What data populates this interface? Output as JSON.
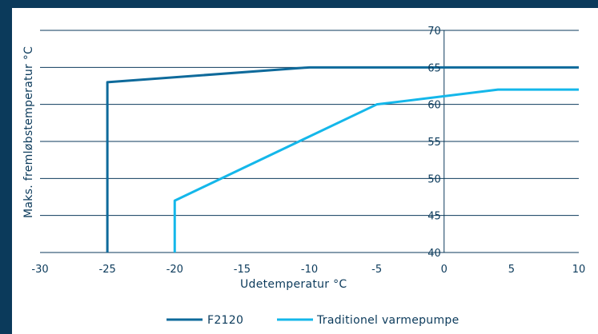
{
  "colors": {
    "background": "#0b3a5b",
    "panel": "#ffffff",
    "gridline": "#0b3a5b",
    "series_dark": "#0e6a9b",
    "series_light": "#14b7ea"
  },
  "chart_data": {
    "type": "line",
    "title": "",
    "xlabel": "Udetemperatur °C",
    "ylabel": "Maks. fremløbstemperatur °C",
    "xlim": [
      -30,
      10
    ],
    "ylim": [
      40,
      70
    ],
    "x_ticks": [
      "-30",
      "-25",
      "-20",
      "-15",
      "-10",
      "-5",
      "0",
      "5",
      "10"
    ],
    "y_ticks": [
      "40",
      "45",
      "50",
      "55",
      "60",
      "65",
      "70"
    ],
    "grid": "horizontal",
    "legend_position": "bottom",
    "series": [
      {
        "name": "F2120",
        "color": "#0e6a9b",
        "x": [
          -25,
          -25,
          -10,
          10
        ],
        "y": [
          40,
          63,
          65,
          65
        ]
      },
      {
        "name": "Traditionel varmepumpe",
        "color": "#14b7ea",
        "x": [
          -20,
          -20,
          -5,
          4,
          10
        ],
        "y": [
          40,
          47,
          60,
          62,
          62
        ]
      }
    ]
  }
}
